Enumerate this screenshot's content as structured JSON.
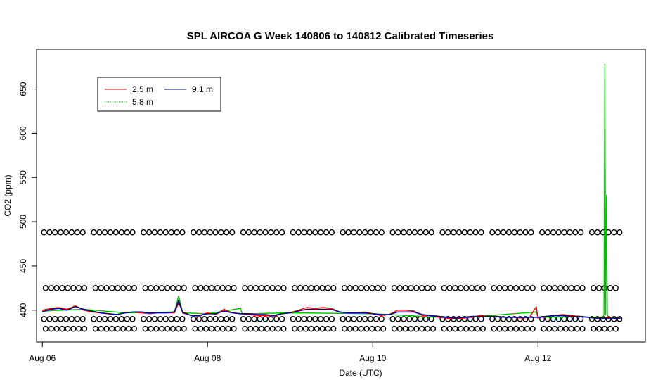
{
  "chart_data": {
    "type": "line",
    "title": "SPL AIRCOA G  Week 140806 to 140812  Calibrated Timeseries",
    "xlabel": "Date (UTC)",
    "ylabel": "CO2 (ppm)",
    "x_unit": "days since Aug 06 00:00 UTC",
    "xlim": [
      -0.07,
      7.3
    ],
    "ylim": [
      364,
      695
    ],
    "x_ticks": [
      {
        "value": 0,
        "label": "Aug 06"
      },
      {
        "value": 2,
        "label": "Aug 08"
      },
      {
        "value": 4,
        "label": "Aug 10"
      },
      {
        "value": 6,
        "label": "Aug 12"
      }
    ],
    "y_ticks": [
      400,
      450,
      500,
      550,
      600,
      650
    ],
    "legend": {
      "position": "top-left",
      "entries": [
        {
          "label": "2.5 m",
          "color": "#ff0000"
        },
        {
          "label": "9.1 m",
          "color": "#00008b"
        },
        {
          "label": "5.8 m",
          "color": "#00c000"
        }
      ]
    },
    "series": [
      {
        "name": "2.5 m",
        "color": "#ff0000",
        "x": [
          0,
          0.1,
          0.2,
          0.3,
          0.4,
          0.5,
          0.6,
          0.7,
          0.8,
          0.9,
          1.0,
          1.1,
          1.2,
          1.3,
          1.4,
          1.5,
          1.6,
          1.65,
          1.7,
          1.8,
          1.9,
          2.0,
          2.1,
          2.2,
          2.3,
          2.4,
          2.5,
          2.6,
          2.7,
          2.8,
          2.9,
          3.0,
          3.1,
          3.2,
          3.3,
          3.4,
          3.5,
          3.6,
          3.7,
          3.8,
          3.9,
          4.0,
          4.1,
          4.2,
          4.3,
          4.4,
          4.5,
          4.6,
          4.7,
          4.8,
          4.9,
          5.0,
          5.1,
          5.2,
          5.3,
          5.4,
          5.5,
          5.6,
          5.7,
          5.8,
          5.9,
          5.98,
          6.0,
          6.1,
          6.2,
          6.3,
          6.4,
          6.5,
          6.6,
          6.7,
          6.8,
          6.85,
          6.9,
          7.0
        ],
        "values": [
          400,
          402,
          403,
          401,
          405,
          400,
          398,
          397,
          396,
          395,
          397,
          398,
          397,
          396,
          397,
          397,
          397,
          408,
          398,
          394,
          393,
          397,
          395,
          401,
          397,
          396,
          395,
          394,
          394,
          393,
          396,
          397,
          400,
          403,
          402,
          403,
          402,
          398,
          397,
          397,
          398,
          396,
          394,
          395,
          400,
          400,
          399,
          394,
          394,
          392,
          391,
          390,
          391,
          392,
          394,
          393,
          393,
          392,
          392,
          391,
          392,
          404,
          391,
          393,
          394,
          395,
          394,
          393,
          392,
          391,
          391,
          392,
          391,
          391
        ]
      },
      {
        "name": "9.1 m",
        "color": "#00008b",
        "x": [
          0,
          0.1,
          0.2,
          0.3,
          0.4,
          0.5,
          0.6,
          0.7,
          0.8,
          0.9,
          1.0,
          1.1,
          1.2,
          1.3,
          1.4,
          1.5,
          1.6,
          1.65,
          1.7,
          1.8,
          1.9,
          2.0,
          2.1,
          2.2,
          2.3,
          2.4,
          2.5,
          2.6,
          2.7,
          2.8,
          2.9,
          3.0,
          3.1,
          3.2,
          3.3,
          3.4,
          3.5,
          3.6,
          3.7,
          3.8,
          3.9,
          4.0,
          4.1,
          4.2,
          4.3,
          4.4,
          4.5,
          4.6,
          4.7,
          4.8,
          4.9,
          5.0,
          5.1,
          5.2,
          5.3,
          5.4,
          5.5,
          5.6,
          5.7,
          5.8,
          5.9,
          6.0,
          6.1,
          6.2,
          6.3,
          6.4,
          6.5,
          6.6,
          6.7,
          6.8,
          6.9,
          7.0
        ],
        "values": [
          398,
          401,
          402,
          400,
          404,
          401,
          399,
          397,
          396,
          395,
          397,
          398,
          398,
          397,
          397,
          397,
          398,
          411,
          397,
          394,
          394,
          396,
          396,
          399,
          397,
          396,
          396,
          395,
          395,
          394,
          396,
          397,
          399,
          401,
          401,
          401,
          401,
          398,
          397,
          397,
          397,
          396,
          395,
          395,
          398,
          398,
          398,
          395,
          394,
          393,
          392,
          391,
          392,
          393,
          393,
          393,
          393,
          392,
          392,
          392,
          392,
          392,
          393,
          394,
          394,
          393,
          393,
          392,
          391,
          391,
          391,
          391
        ]
      },
      {
        "name": "5.8 m",
        "color": "#00c000",
        "x": [
          0,
          0.5,
          1.0,
          1.6,
          1.65,
          1.7,
          2.0,
          2.4,
          2.42,
          2.5,
          3.0,
          4.0,
          5.0,
          5.98,
          6.0,
          6.5,
          6.78,
          6.8,
          6.81,
          6.82,
          6.83,
          6.84,
          6.85,
          6.87,
          6.9,
          7.0
        ],
        "values": [
          399,
          401,
          397,
          398,
          416,
          397,
          396,
          402,
          396,
          396,
          397,
          396,
          391,
          398,
          392,
          393,
          391,
          395,
          678,
          395,
          530,
          395,
          392,
          391,
          391,
          391
        ]
      },
      {
        "name": "markers",
        "x_step": 0.067,
        "x_start": 0.02,
        "x_end": 7.0,
        "levels": [
          488,
          425,
          390,
          379
        ]
      }
    ]
  }
}
